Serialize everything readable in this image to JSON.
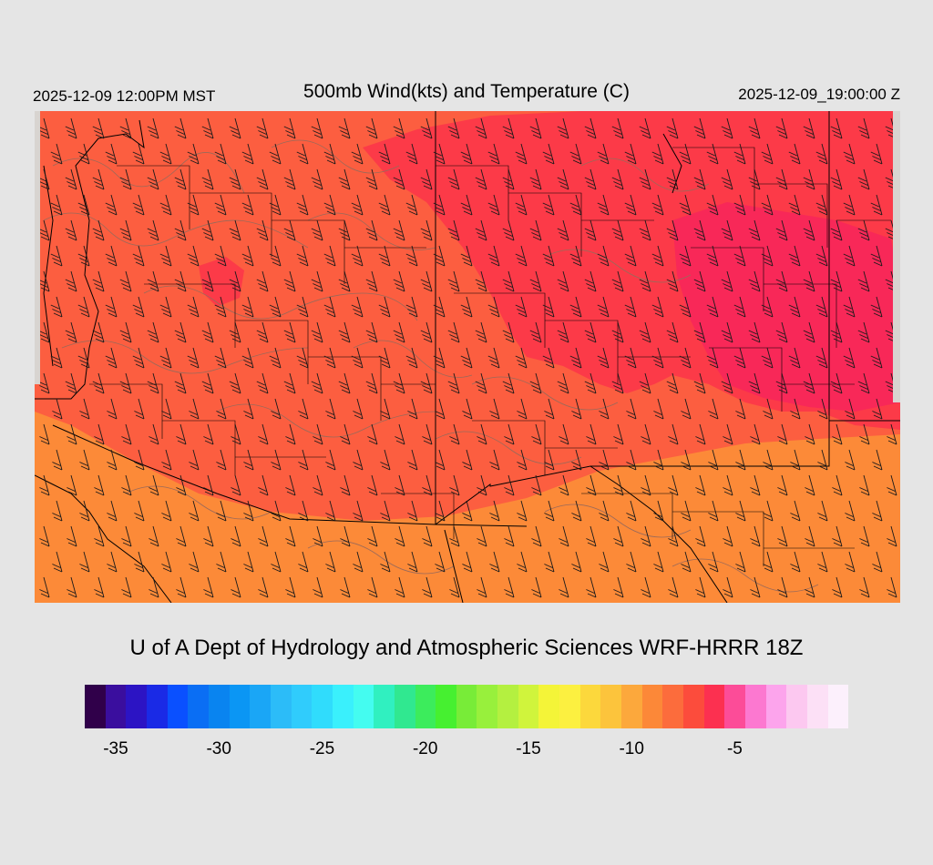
{
  "header": {
    "valid_local": "2025-12-09 12:00PM MST",
    "title": "500mb Wind(kts) and Temperature (C)",
    "valid_utc": "2025-12-09_19:00:00 Z"
  },
  "footer": {
    "credit": "U of A Dept of Hydrology and Atmospheric Sciences WRF-HRRR 18Z"
  },
  "colorbar": {
    "min": -36,
    "max": -1,
    "step": 1,
    "colors": [
      "#30004a",
      "#3a0e9e",
      "#2c14c4",
      "#1a2ae6",
      "#0a50ff",
      "#0a6ef4",
      "#0984f0",
      "#0b96f4",
      "#1aa6f6",
      "#2cbcf8",
      "#30ccfc",
      "#30dcfc",
      "#3af0fc",
      "#44fcf0",
      "#30f0c0",
      "#30e890",
      "#3cec5c",
      "#46f030",
      "#78ec38",
      "#98f03c",
      "#b4f040",
      "#d0f43c",
      "#f4f438",
      "#fcf040",
      "#fcd83c",
      "#fcc43c",
      "#fca83c",
      "#fc8838",
      "#fc6c3c",
      "#fc4c3c",
      "#fc3050",
      "#fc4c98",
      "#fc78d0",
      "#fca4ec",
      "#fcc8f0",
      "#fce0f6",
      "#fcf0fc"
    ],
    "tick_labels": [
      "-35",
      "-30",
      "-25",
      "-20",
      "-15",
      "-10",
      "-5"
    ],
    "tick_values": [
      -35,
      -30,
      -25,
      -20,
      -15,
      -10,
      -5
    ]
  },
  "map": {
    "fill_base": "#fc5e40",
    "fill_warm": "#fc8a38",
    "fill_warmer": "#fca83c",
    "fill_cold": "#fc3a48",
    "fill_colder": "#f82858",
    "boundary_color": "#000000",
    "contour_color": "#9a6a5a",
    "barb_color": "#1a1a1a",
    "edge_color": "#d8d4d0",
    "wind_barbs": "southwesterly wind barbs"
  }
}
